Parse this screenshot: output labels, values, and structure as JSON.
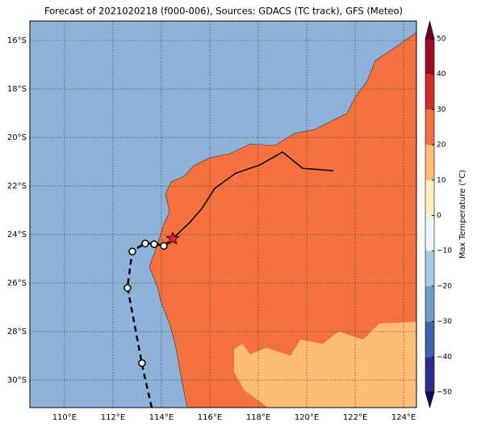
{
  "map": {
    "title": "Forecast of 2021020218 (f000-006), Sources: GDACS (TC track), GFS (Meteo)",
    "lonlim": [
      108.57,
      124.53
    ],
    "latlim": [
      -31.13,
      -15.2
    ],
    "lonticks": [
      {
        "value": 110,
        "label": "110°E"
      },
      {
        "value": 112,
        "label": "112°E"
      },
      {
        "value": 114,
        "label": "114°E"
      },
      {
        "value": 116,
        "label": "116°E"
      },
      {
        "value": 118,
        "label": "118°E"
      },
      {
        "value": 120,
        "label": "120°E"
      },
      {
        "value": 122,
        "label": "122°E"
      },
      {
        "value": 124,
        "label": "124°E"
      }
    ],
    "latticks": [
      {
        "value": -16,
        "label": "16°S"
      },
      {
        "value": -18,
        "label": "18°S"
      },
      {
        "value": -20,
        "label": "20°S"
      },
      {
        "value": -22,
        "label": "22°S"
      },
      {
        "value": -24,
        "label": "24°S"
      },
      {
        "value": -26,
        "label": "26°S"
      },
      {
        "value": -28,
        "label": "28°S"
      },
      {
        "value": -30,
        "label": "30°S"
      }
    ],
    "forecast_track": {
      "lon": [
        114.47,
        115.17,
        115.67,
        116.2,
        117.07,
        118.07,
        119.0,
        119.83,
        121.1
      ],
      "lat": [
        -24.17,
        -23.5,
        -22.93,
        -22.1,
        -21.47,
        -21.13,
        -20.6,
        -21.27,
        -21.37
      ]
    },
    "past_track": {
      "lon": [
        113.6,
        113.23,
        112.6,
        112.8,
        113.33,
        113.7,
        114.1,
        114.47
      ],
      "lat": [
        -31.13,
        -29.5,
        -26.17,
        -24.67,
        -24.37,
        -24.37,
        -24.47,
        -24.17
      ]
    },
    "positions": {
      "lon": [
        113.2,
        112.6,
        112.8,
        113.33,
        113.7,
        114.1
      ],
      "lat": [
        -29.3,
        -26.2,
        -24.7,
        -24.37,
        -24.4,
        -24.47
      ]
    },
    "current": {
      "lon": 114.47,
      "lat": -24.17
    },
    "colorbar": {
      "label": "Max Temperature (°C)",
      "lim": [
        -50,
        50
      ],
      "ticks": [
        {
          "value": 50,
          "label": "50"
        },
        {
          "value": 40,
          "label": "40"
        },
        {
          "value": 30,
          "label": "30"
        },
        {
          "value": 20,
          "label": "20"
        },
        {
          "value": 10,
          "label": "10"
        },
        {
          "value": 0,
          "label": "0"
        },
        {
          "value": -10,
          "label": "−10"
        },
        {
          "value": -20,
          "label": "−20"
        },
        {
          "value": -30,
          "label": "−30"
        },
        {
          "value": -40,
          "label": "−40"
        },
        {
          "value": -50,
          "label": "−50"
        }
      ],
      "colors": [
        "#2b2f8f",
        "#3f62a8",
        "#6f9bc9",
        "#a9c9e3",
        "#eef5f8",
        "#fdf0c0",
        "#fdbd74",
        "#f46d43",
        "#d22d26",
        "#a10b26"
      ],
      "under_color": "#0e0b66",
      "over_color": "#6a0020"
    }
  }
}
